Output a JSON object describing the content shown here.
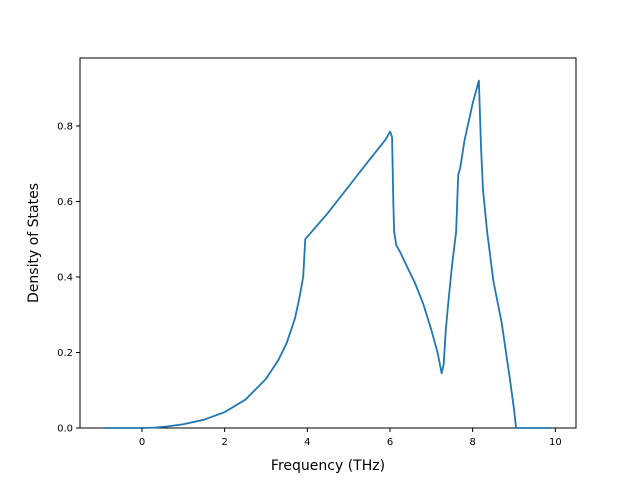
{
  "chart_data": {
    "type": "line",
    "title": "",
    "xlabel": "Frequency (THz)",
    "ylabel": "Density of States",
    "xlim": [
      -1.5,
      10.5
    ],
    "ylim": [
      0.0,
      0.98
    ],
    "xticks": [
      0,
      2,
      4,
      6,
      8,
      10
    ],
    "yticks": [
      0.0,
      0.2,
      0.4,
      0.6,
      0.8
    ],
    "xtick_labels": [
      "0",
      "2",
      "4",
      "6",
      "8",
      "10"
    ],
    "ytick_labels": [
      "0.0",
      "0.2",
      "0.4",
      "0.6",
      "0.8"
    ],
    "grid": false,
    "legend": "none",
    "series": [
      {
        "color": "#1f77b4",
        "x": [
          -0.9,
          0.0,
          0.3,
          0.6,
          1.0,
          1.5,
          2.0,
          2.5,
          3.0,
          3.3,
          3.5,
          3.7,
          3.8,
          3.9,
          3.95,
          4.5,
          5.0,
          5.5,
          5.9,
          6.0,
          6.02,
          6.05,
          6.08,
          6.1,
          6.15,
          6.25,
          6.4,
          6.6,
          6.8,
          7.0,
          7.15,
          7.25,
          7.3,
          7.35,
          7.4,
          7.5,
          7.6,
          7.65,
          7.7,
          7.8,
          8.0,
          8.15,
          8.2,
          8.25,
          8.35,
          8.5,
          8.7,
          8.9,
          9.0,
          9.05,
          9.9
        ],
        "y": [
          0.0,
          0.0,
          0.001,
          0.004,
          0.01,
          0.022,
          0.042,
          0.075,
          0.13,
          0.18,
          0.225,
          0.29,
          0.34,
          0.4,
          0.5,
          0.57,
          0.64,
          0.71,
          0.765,
          0.785,
          0.78,
          0.77,
          0.6,
          0.52,
          0.485,
          0.465,
          0.43,
          0.385,
          0.33,
          0.26,
          0.2,
          0.145,
          0.17,
          0.26,
          0.32,
          0.43,
          0.52,
          0.67,
          0.69,
          0.76,
          0.86,
          0.92,
          0.75,
          0.63,
          0.52,
          0.39,
          0.28,
          0.13,
          0.05,
          0.0,
          0.0
        ]
      }
    ]
  }
}
